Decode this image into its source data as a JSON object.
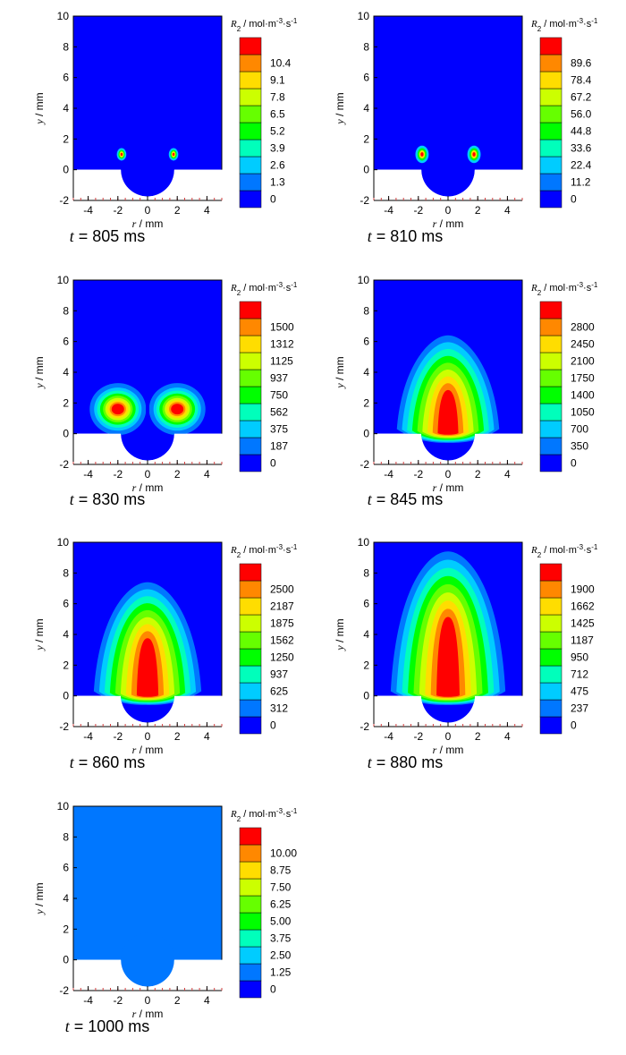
{
  "figure": {
    "colormap": [
      "#0000ff",
      "#0077ff",
      "#00ccff",
      "#00ffbb",
      "#00ff00",
      "#66ff00",
      "#ccff00",
      "#ffdd00",
      "#ff8800",
      "#ff0000"
    ],
    "domain_color": "#0000ff",
    "axis": {
      "x_ticks": [
        -4,
        -2,
        0,
        2,
        4
      ],
      "y_ticks": [
        -2,
        0,
        2,
        4,
        6,
        8,
        10
      ],
      "xlim": [
        -5,
        5
      ],
      "ylim": [
        -2,
        10
      ],
      "xlabel_var": "r",
      "xlabel_unit": " / mm",
      "ylabel_var": "y",
      "ylabel_unit": " / mm",
      "colorbar_title": "R2 / mol·m-3·s-1"
    }
  },
  "chart_data": [
    {
      "type": "contour",
      "time_var": "t",
      "time_value": " = 805 ms",
      "colorbar_ticks": [
        "0",
        "1.3",
        "2.6",
        "3.9",
        "5.2",
        "6.5",
        "7.8",
        "9.1",
        "10.4"
      ],
      "pattern": "spots",
      "scale": 1.0
    },
    {
      "type": "contour",
      "time_var": "t",
      "time_value": " = 810 ms",
      "colorbar_ticks": [
        "0",
        "11.2",
        "22.4",
        "33.6",
        "44.8",
        "56.0",
        "67.2",
        "78.4",
        "89.6"
      ],
      "pattern": "spots",
      "scale": 1.4
    },
    {
      "type": "contour",
      "time_var": "t",
      "time_value": " = 830 ms",
      "colorbar_ticks": [
        "0",
        "187",
        "375",
        "562",
        "750",
        "937",
        "1125",
        "1312",
        "1500"
      ],
      "pattern": "lobes",
      "scale": 1.0
    },
    {
      "type": "contour",
      "time_var": "t",
      "time_value": " = 845 ms",
      "colorbar_ticks": [
        "0",
        "350",
        "700",
        "1050",
        "1400",
        "1750",
        "2100",
        "2450",
        "2800"
      ],
      "pattern": "bell",
      "center_y": 2.0,
      "top_y": 6.0,
      "scale": 1.0
    },
    {
      "type": "contour",
      "time_var": "t",
      "time_value": " = 860 ms",
      "colorbar_ticks": [
        "0",
        "312",
        "625",
        "937",
        "1250",
        "1562",
        "1875",
        "2187",
        "2500"
      ],
      "pattern": "bell",
      "center_y": 2.9,
      "top_y": 7.0,
      "scale": 1.05
    },
    {
      "type": "contour",
      "time_var": "t",
      "time_value": " = 880 ms",
      "colorbar_ticks": [
        "0",
        "237",
        "475",
        "712",
        "950",
        "1187",
        "1425",
        "1662",
        "1900"
      ],
      "pattern": "bell",
      "center_y": 4.2,
      "top_y": 9.0,
      "scale": 1.12
    },
    {
      "type": "contour",
      "time_var": "t",
      "time_value": " = 1000 ms",
      "colorbar_ticks": [
        "0",
        "1.25",
        "2.50",
        "3.75",
        "5.00",
        "6.25",
        "7.50",
        "8.75",
        "10.00"
      ],
      "pattern": "uniform",
      "fill_level": 1
    }
  ]
}
